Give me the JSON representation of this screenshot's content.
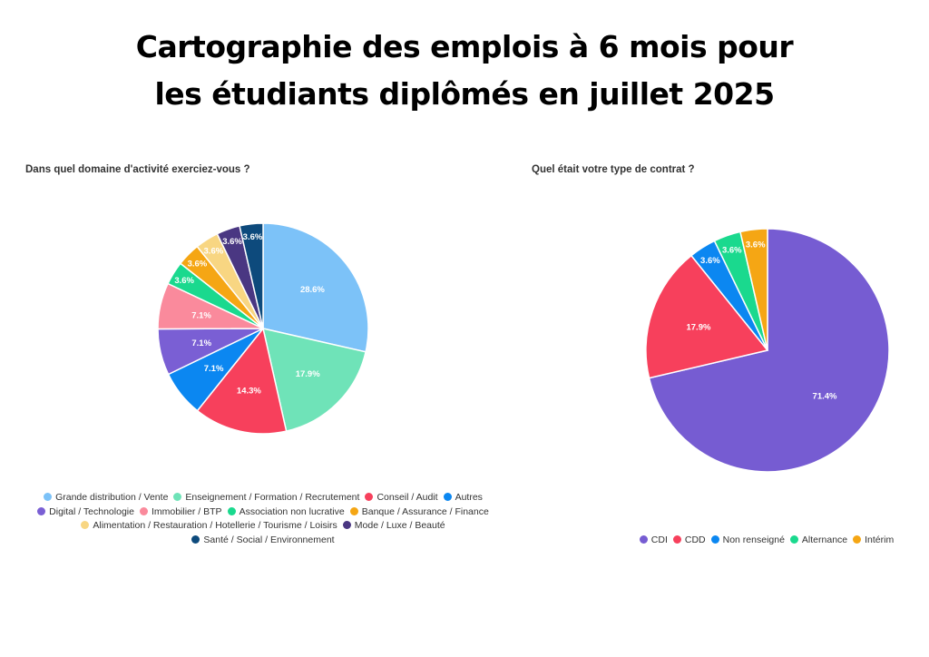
{
  "title_line1": "Cartographie des emplois à 6 mois pour",
  "title_line2": "les étudiants diplômés en juillet 2025",
  "chart_data": [
    {
      "type": "pie",
      "title": "Dans quel domaine d'activité exerciez-vous ?",
      "legend_position": "bottom",
      "slices": [
        {
          "label": "Grande distribution / Vente",
          "value": 28.6,
          "display": "28.6%",
          "color": "#7cc2f8"
        },
        {
          "label": "Enseignement / Formation / Recrutement",
          "value": 17.9,
          "display": "17.9%",
          "color": "#6fe3b8"
        },
        {
          "label": "Conseil / Audit",
          "value": 14.3,
          "display": "14.3%",
          "color": "#f7405c"
        },
        {
          "label": "Autres",
          "value": 7.1,
          "display": "7.1%",
          "color": "#0b87f1"
        },
        {
          "label": "Digital / Technologie",
          "value": 7.1,
          "display": "7.1%",
          "color": "#7a5fd4"
        },
        {
          "label": "Immobilier / BTP",
          "value": 7.1,
          "display": "7.1%",
          "color": "#fa8a9c"
        },
        {
          "label": "Association non lucrative",
          "value": 3.6,
          "display": "3.6%",
          "color": "#1ad98e"
        },
        {
          "label": "Banque / Assurance / Finance",
          "value": 3.6,
          "display": "3.6%",
          "color": "#f5a614"
        },
        {
          "label": "Alimentation / Restauration / Hotellerie / Tourisme / Loisirs",
          "value": 3.6,
          "display": "3.6%",
          "color": "#f8d682"
        },
        {
          "label": "Mode / Luxe / Beauté",
          "value": 3.6,
          "display": "3.6%",
          "color": "#4a3782"
        },
        {
          "label": "Santé / Social / Environnement",
          "value": 3.6,
          "display": "3.6%",
          "color": "#0d4a7c"
        }
      ],
      "legend_rows": [
        [
          0,
          1,
          2,
          3
        ],
        [
          4,
          5,
          6,
          7
        ],
        [
          8,
          9
        ],
        [
          10
        ]
      ]
    },
    {
      "type": "pie",
      "title": "Quel était votre type de contrat ?",
      "legend_position": "bottom",
      "slices": [
        {
          "label": "CDI",
          "value": 71.4,
          "display": "71.4%",
          "color": "#765cd2"
        },
        {
          "label": "CDD",
          "value": 17.9,
          "display": "17.9%",
          "color": "#f7405c"
        },
        {
          "label": "Non renseigné",
          "value": 3.6,
          "display": "3.6%",
          "color": "#0b87f1"
        },
        {
          "label": "Alternance",
          "value": 3.6,
          "display": "3.6%",
          "color": "#1ad98e"
        },
        {
          "label": "Intérim",
          "value": 3.6,
          "display": "3.6%",
          "color": "#f5a614"
        }
      ],
      "legend_rows": [
        [
          0,
          1,
          2,
          3,
          4
        ]
      ]
    }
  ]
}
